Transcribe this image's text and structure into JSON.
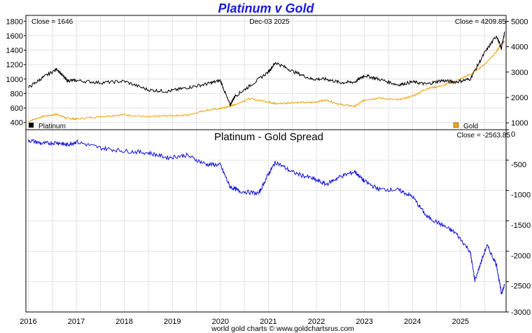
{
  "title": "Platinum v Gold",
  "date_label": "Dec-03  2025",
  "footer": "world gold charts © www.goldchartsrus.com",
  "colors": {
    "platinum": "#000000",
    "gold": "#f0a30a",
    "spread": "#1414d8",
    "grid": "#e2e2e2"
  },
  "chart_data": [
    {
      "type": "line",
      "panel": "top",
      "x": [
        2016.0,
        2016.3,
        2016.6,
        2016.8,
        2017.0,
        2017.5,
        2018.0,
        2018.5,
        2018.9,
        2019.3,
        2019.7,
        2020.0,
        2020.2,
        2020.3,
        2020.6,
        2021.0,
        2021.15,
        2021.5,
        2021.9,
        2022.2,
        2022.5,
        2022.8,
        2023.0,
        2023.3,
        2023.7,
        2024.0,
        2024.3,
        2024.6,
        2024.9,
        2025.2,
        2025.5,
        2025.75,
        2025.85,
        2025.92
      ],
      "series": [
        {
          "name": "Platinum",
          "axis": "left",
          "close_label": "Close = 1646",
          "values": [
            880,
            1020,
            1140,
            980,
            980,
            950,
            970,
            850,
            830,
            880,
            930,
            980,
            640,
            760,
            900,
            1100,
            1230,
            1110,
            1000,
            1000,
            950,
            960,
            1050,
            1000,
            920,
            960,
            930,
            980,
            960,
            1000,
            1360,
            1600,
            1420,
            1646
          ]
        },
        {
          "name": "Gold",
          "axis": "right",
          "close_label": "Close = 4209.85",
          "values": [
            1060,
            1250,
            1340,
            1180,
            1150,
            1250,
            1320,
            1230,
            1280,
            1300,
            1500,
            1560,
            1650,
            1720,
            1950,
            1830,
            1750,
            1800,
            1800,
            1900,
            1720,
            1650,
            1900,
            1980,
            1900,
            2050,
            2350,
            2450,
            2650,
            2900,
            3300,
            3800,
            4100,
            4209.85
          ]
        }
      ],
      "y_left_ticks": [
        400,
        600,
        800,
        1000,
        1200,
        1400,
        1600,
        1800
      ],
      "y_right_ticks": [
        1000,
        2000,
        3000,
        4000,
        5000
      ],
      "ylim_left": [
        300,
        1880
      ],
      "ylim_right": [
        730,
        5230
      ]
    },
    {
      "type": "line",
      "panel": "bottom",
      "title": "Platinum  -  Gold Spread",
      "close_label": "Close = -2563.85",
      "x": [
        2016.0,
        2016.3,
        2016.6,
        2016.8,
        2017.0,
        2017.5,
        2018.0,
        2018.5,
        2018.9,
        2019.3,
        2019.7,
        2020.0,
        2020.2,
        2020.4,
        2020.8,
        2021.0,
        2021.15,
        2021.5,
        2021.9,
        2022.2,
        2022.5,
        2022.8,
        2023.0,
        2023.3,
        2023.7,
        2024.0,
        2024.3,
        2024.6,
        2024.9,
        2025.2,
        2025.3,
        2025.55,
        2025.75,
        2025.85,
        2025.92
      ],
      "series": [
        {
          "name": "Spread",
          "axis": "right",
          "values": [
            -170,
            -230,
            -210,
            -250,
            -200,
            -300,
            -350,
            -380,
            -460,
            -420,
            -570,
            -580,
            -940,
            -1010,
            -1050,
            -730,
            -530,
            -700,
            -800,
            -900,
            -770,
            -690,
            -850,
            -980,
            -990,
            -1100,
            -1430,
            -1560,
            -1700,
            -2000,
            -2480,
            -1900,
            -2220,
            -2690,
            -2563.85
          ]
        }
      ],
      "y_ticks": [
        0,
        -500,
        -1000,
        -1500,
        -2000,
        -2500,
        -3000
      ],
      "ylim": [
        -3000,
        0
      ]
    }
  ],
  "x_tick_labels": [
    "2016",
    "2017",
    "2018",
    "2019",
    "2020",
    "2021",
    "2022",
    "2023",
    "2024",
    "2025"
  ]
}
